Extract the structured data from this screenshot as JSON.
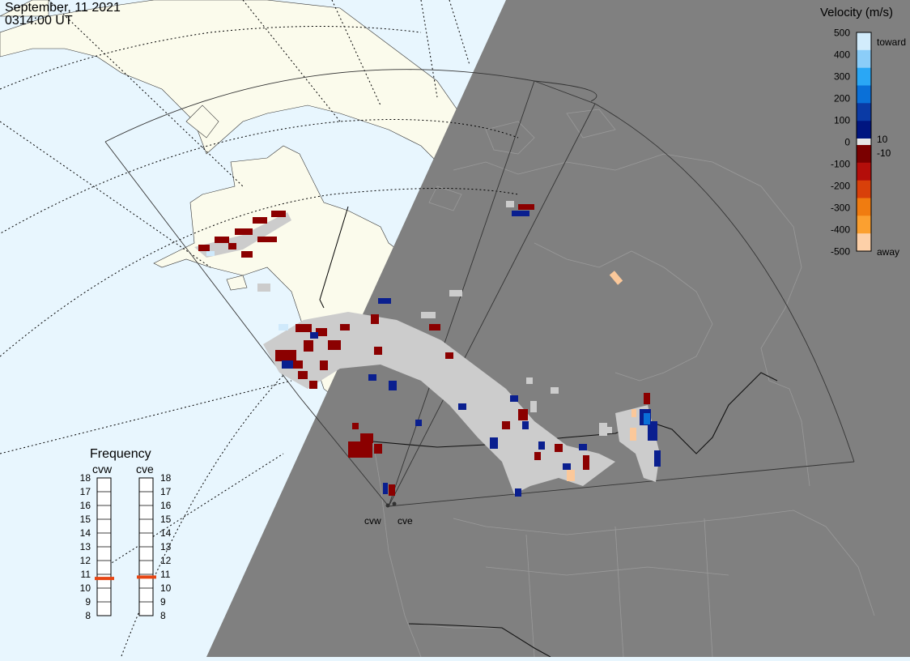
{
  "header": {
    "date": "September, 11 2021",
    "time": "0314:00 UT"
  },
  "colors": {
    "ocean": "#e8f6fe",
    "land_day": "#fbfbec",
    "night_shade": "#808080",
    "fov_outline": "#333333",
    "ground_scatter": "#cccccc"
  },
  "velocity_scale": {
    "title": "Velocity (m/s)",
    "unit": "m/s",
    "ticks": [
      "500",
      "400",
      "300",
      "200",
      "100",
      "0",
      "-100",
      "-200",
      "-300",
      "-400",
      "-500"
    ],
    "small_labels": [
      "10",
      "-10"
    ],
    "toward_label": "toward",
    "away_label": "away",
    "range": [
      -500,
      500
    ],
    "colors_toward": [
      "#d2ecfc",
      "#8bcdf8",
      "#2aa7f5",
      "#0a70d8",
      "#0a3aa5",
      "#001580"
    ],
    "colors_away": [
      "#7a0000",
      "#b40e0a",
      "#d8400a",
      "#f07c10",
      "#fba030",
      "#fdd0a8"
    ]
  },
  "frequency_panel": {
    "title": "Frequency",
    "radars": [
      {
        "name": "cvw",
        "frequency_mhz": 10.7
      },
      {
        "name": "cve",
        "frequency_mhz": 10.8
      }
    ],
    "scale_labels": [
      "18",
      "17",
      "16",
      "15",
      "14",
      "13",
      "12",
      "11",
      "10",
      "9",
      "8"
    ],
    "range": [
      8,
      18
    ],
    "marker_color": "#e64513"
  },
  "radar_sites": [
    {
      "label": "cvw"
    },
    {
      "label": "cve"
    }
  ]
}
